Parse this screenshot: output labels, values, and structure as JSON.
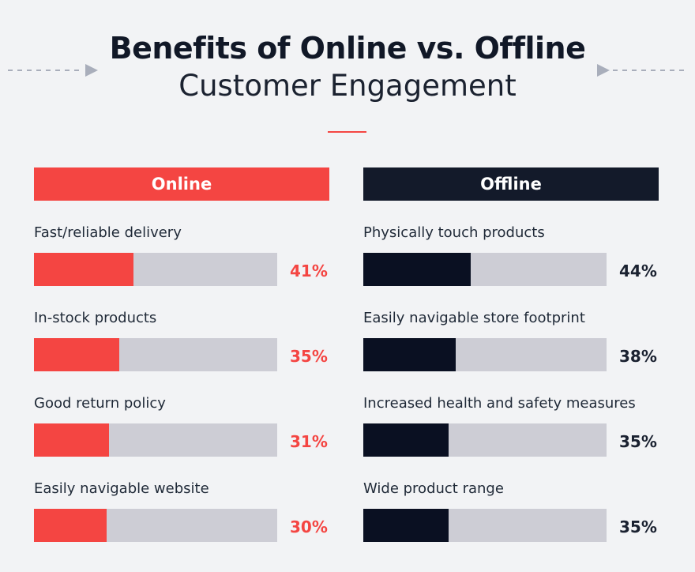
{
  "header": {
    "title_line1": "Benefits of Online vs. Offline",
    "title_line2": "Customer Engagement"
  },
  "colors": {
    "online": "#f44542",
    "offline": "#131a2a",
    "track": "#cdcdd5",
    "background": "#f2f3f5"
  },
  "chart_data": [
    {
      "type": "bar",
      "title": "Online",
      "categories": [
        "Fast/reliable delivery",
        "In-stock products",
        "Good return policy",
        "Easily navigable website"
      ],
      "values": [
        41,
        35,
        31,
        30
      ],
      "value_labels": [
        "41%",
        "35%",
        "31%",
        "30%"
      ],
      "ylim": [
        0,
        100
      ]
    },
    {
      "type": "bar",
      "title": "Offline",
      "categories": [
        "Physically touch products",
        "Easily navigable store footprint",
        "Increased health and safety measures",
        "Wide product range"
      ],
      "values": [
        44,
        38,
        35,
        35
      ],
      "value_labels": [
        "44%",
        "38%",
        "35%",
        "35%"
      ],
      "ylim": [
        0,
        100
      ]
    }
  ]
}
